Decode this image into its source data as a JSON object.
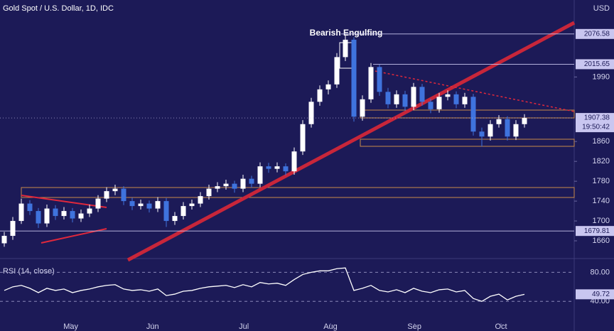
{
  "chart_data": {
    "type": "candlestick",
    "title": "Gold Spot / U.S. Dollar, 1D, IDC",
    "currency": "USD",
    "annotation": "Bearish Engulfing",
    "countdown": "19:50:42",
    "candles": [
      [
        1655,
        1678,
        1648,
        1670
      ],
      [
        1670,
        1708,
        1662,
        1700
      ],
      [
        1700,
        1745,
        1694,
        1735
      ],
      [
        1735,
        1742,
        1712,
        1720
      ],
      [
        1720,
        1726,
        1686,
        1695
      ],
      [
        1695,
        1733,
        1688,
        1725
      ],
      [
        1725,
        1732,
        1702,
        1710
      ],
      [
        1710,
        1728,
        1703,
        1720
      ],
      [
        1720,
        1726,
        1697,
        1705
      ],
      [
        1705,
        1723,
        1698,
        1715
      ],
      [
        1715,
        1733,
        1708,
        1725
      ],
      [
        1725,
        1752,
        1718,
        1745
      ],
      [
        1745,
        1768,
        1738,
        1760
      ],
      [
        1760,
        1773,
        1752,
        1765
      ],
      [
        1765,
        1770,
        1732,
        1740
      ],
      [
        1740,
        1747,
        1722,
        1730
      ],
      [
        1730,
        1743,
        1723,
        1735
      ],
      [
        1735,
        1741,
        1717,
        1725
      ],
      [
        1725,
        1748,
        1718,
        1740
      ],
      [
        1740,
        1746,
        1688,
        1700
      ],
      [
        1700,
        1718,
        1692,
        1710
      ],
      [
        1710,
        1738,
        1703,
        1730
      ],
      [
        1730,
        1743,
        1723,
        1735
      ],
      [
        1735,
        1758,
        1728,
        1750
      ],
      [
        1750,
        1773,
        1743,
        1765
      ],
      [
        1765,
        1778,
        1758,
        1770
      ],
      [
        1770,
        1783,
        1763,
        1775
      ],
      [
        1775,
        1781,
        1757,
        1765
      ],
      [
        1765,
        1793,
        1758,
        1785
      ],
      [
        1785,
        1791,
        1767,
        1775
      ],
      [
        1775,
        1818,
        1768,
        1810
      ],
      [
        1810,
        1817,
        1797,
        1805
      ],
      [
        1805,
        1818,
        1798,
        1810
      ],
      [
        1810,
        1816,
        1792,
        1800
      ],
      [
        1800,
        1848,
        1793,
        1840
      ],
      [
        1840,
        1903,
        1833,
        1895
      ],
      [
        1895,
        1948,
        1888,
        1940
      ],
      [
        1940,
        1973,
        1932,
        1965
      ],
      [
        1965,
        1983,
        1955,
        1975
      ],
      [
        1975,
        2038,
        1968,
        2030
      ],
      [
        2030,
        2075,
        2022,
        2065
      ],
      [
        2065,
        2070,
        1900,
        1910
      ],
      [
        1910,
        1953,
        1902,
        1945
      ],
      [
        1945,
        2018,
        1938,
        2010
      ],
      [
        2010,
        2015,
        1952,
        1960
      ],
      [
        1960,
        1968,
        1927,
        1935
      ],
      [
        1935,
        1963,
        1928,
        1955
      ],
      [
        1955,
        1962,
        1922,
        1930
      ],
      [
        1930,
        1978,
        1923,
        1970
      ],
      [
        1970,
        1976,
        1932,
        1940
      ],
      [
        1940,
        1946,
        1917,
        1925
      ],
      [
        1925,
        1958,
        1918,
        1950
      ],
      [
        1950,
        1963,
        1943,
        1955
      ],
      [
        1955,
        1961,
        1927,
        1935
      ],
      [
        1935,
        1958,
        1928,
        1950
      ],
      [
        1950,
        1956,
        1872,
        1880
      ],
      [
        1880,
        1888,
        1850,
        1870
      ],
      [
        1870,
        1903,
        1862,
        1895
      ],
      [
        1895,
        1913,
        1888,
        1905
      ],
      [
        1905,
        1911,
        1862,
        1870
      ],
      [
        1870,
        1903,
        1863,
        1895
      ],
      [
        1895,
        1915,
        1888,
        1907.38
      ]
    ],
    "up_color": "#ffffff",
    "down_color": "#3f73dd",
    "ylim": [
      1630,
      2145
    ],
    "yticks": [
      1660,
      1700,
      1740,
      1780,
      1820,
      1860,
      1990
    ],
    "levels": [
      2076.58,
      2015.65,
      1679.81
    ],
    "xticks": [
      {
        "value": 7.8,
        "label": "May"
      },
      {
        "value": 17.4,
        "label": "Jun"
      },
      {
        "value": 28.1,
        "label": "Jul"
      },
      {
        "value": 38.25,
        "label": "Aug"
      },
      {
        "value": 48.1,
        "label": "Sep"
      },
      {
        "value": 58.25,
        "label": "Oct"
      }
    ],
    "rsi": {
      "title": "RSI (14, close)",
      "color": "#ffffff",
      "values": [
        55,
        60,
        62,
        58,
        52,
        58,
        55,
        57,
        52,
        55,
        57,
        60,
        62,
        63,
        57,
        55,
        56,
        54,
        57,
        48,
        50,
        54,
        55,
        58,
        60,
        61,
        62,
        59,
        63,
        60,
        66,
        64,
        65,
        62,
        70,
        77,
        80,
        82,
        82,
        85,
        86,
        55,
        58,
        62,
        55,
        53,
        56,
        52,
        58,
        54,
        52,
        56,
        57,
        53,
        55,
        44,
        40,
        47,
        50,
        42,
        47,
        49.72
      ],
      "ylim": [
        10,
        95
      ],
      "yticks": [
        {
          "value": 80,
          "label": "80.00"
        },
        {
          "value": 40,
          "label": "40.00"
        }
      ]
    }
  }
}
